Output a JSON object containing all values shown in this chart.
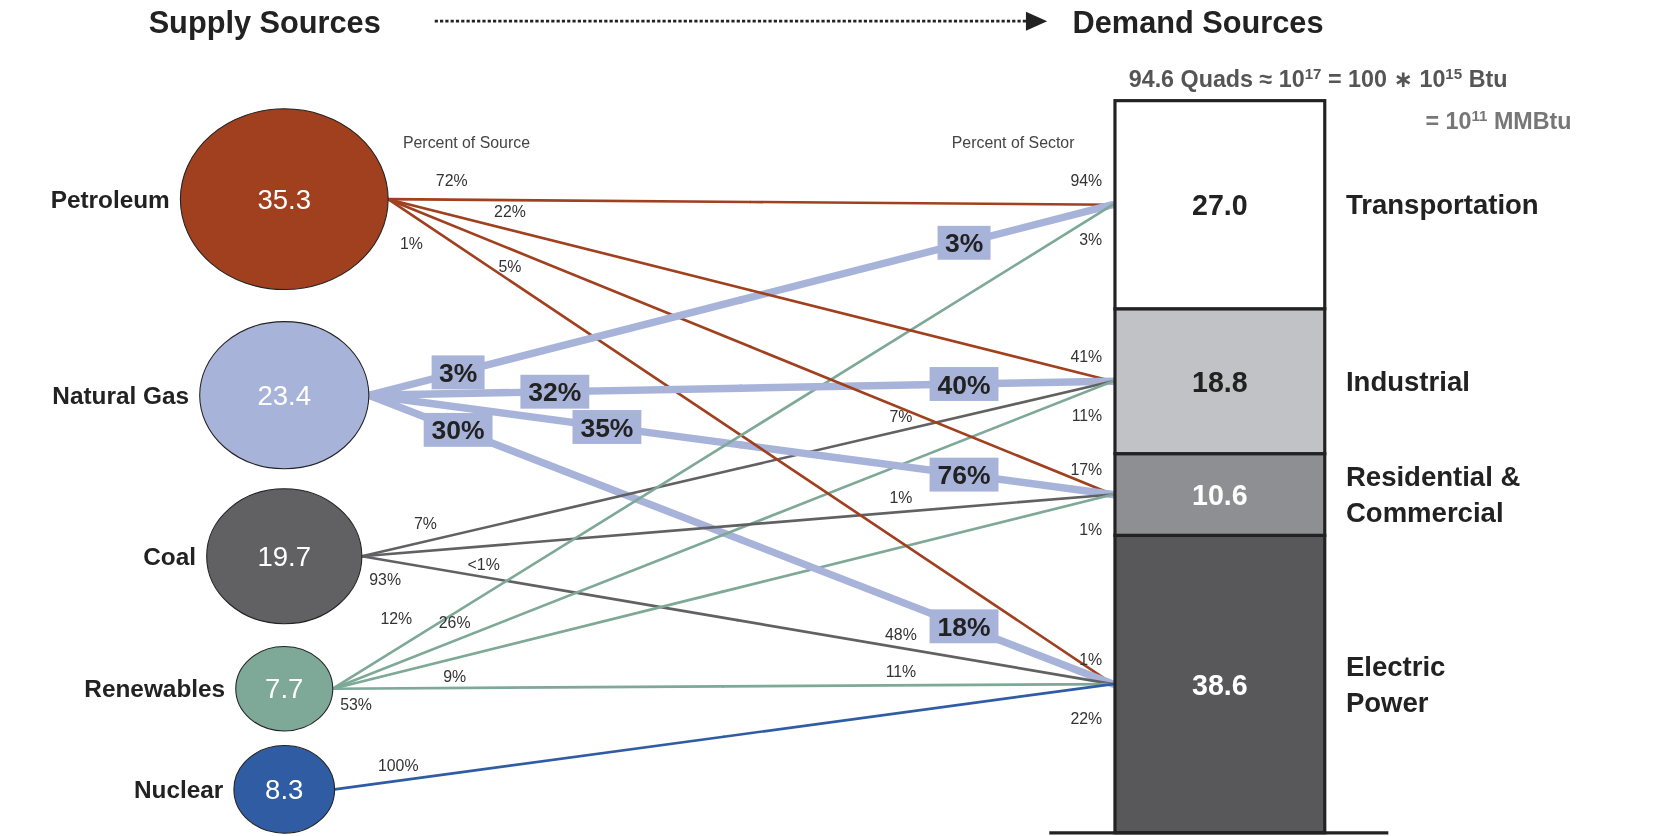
{
  "chart_data": [
    {
      "type": "other",
      "title": "Supply Sources",
      "categories": [
        "Petroleum",
        "Natural Gas",
        "Coal",
        "Renewables",
        "Nuclear"
      ],
      "values": [
        35.3,
        23.4,
        19.7,
        7.7,
        8.3
      ],
      "colors": [
        "#a0401f",
        "#a8b3da",
        "#616163",
        "#7ea897",
        "#2f5ca3"
      ],
      "data_labels": true
    },
    {
      "type": "bar",
      "stacked": true,
      "title": "Demand Sources",
      "annotations": [
        "94.6 Quads ≈ 10$^{17}$ = 100 ∗ 10$^{15}$ Btu",
        "= 10$^{11}$ MMBtu"
      ],
      "categories": [
        null
      ],
      "series": [
        {
          "name": "Electric Power",
          "color": "#58585b",
          "values": [
            38.6
          ],
          "value_labels": [
            "38.6"
          ]
        },
        {
          "name": "Residential & Commercial",
          "color": "#8e8f92",
          "values": [
            10.6
          ],
          "value_labels": [
            "10.6"
          ]
        },
        {
          "name": "Industrial",
          "color": "#c1c2c5",
          "values": [
            18.8
          ],
          "value_labels": [
            "18.8"
          ]
        },
        {
          "name": "Transportation",
          "color": "#ffffff",
          "values": [
            27.0
          ],
          "value_labels": [
            "27.0"
          ]
        }
      ]
    },
    {
      "type": "other",
      "annotations": [
        "Percent of Source"
      ],
      "categories": [
        null,
        null,
        null,
        null
      ],
      "series": [
        {
          "color": "#a0401f",
          "values": [
            null,
            null,
            null,
            null
          ],
          "value_labels": [
            "72%",
            "22%",
            "5%",
            "1%"
          ]
        },
        {
          "color": "#a8b3da",
          "values": [
            null,
            null,
            null,
            null
          ],
          "value_labels": [
            "3%",
            "32%",
            "35%",
            "30%"
          ]
        },
        {
          "color": "#616163",
          "values": [
            null,
            null,
            null,
            null
          ],
          "value_labels": [
            null,
            "7%",
            "<1%",
            "93%"
          ]
        },
        {
          "color": "#7ea897",
          "values": [
            null,
            null,
            null,
            null
          ],
          "value_labels": [
            "12%",
            "26%",
            "9%",
            "53%"
          ]
        },
        {
          "color": "#2f5ca3",
          "values": [
            null,
            null,
            null,
            null
          ],
          "value_labels": [
            null,
            null,
            null,
            "100%"
          ]
        }
      ]
    },
    {
      "type": "other",
      "annotations": [
        "Percent of Sector"
      ],
      "categories": [
        null,
        null,
        null,
        null
      ],
      "series": [
        {
          "color": "#a0401f",
          "values": [
            null,
            null,
            null,
            null
          ],
          "value_labels": [
            "94%",
            "41%",
            "17%",
            "1%"
          ]
        },
        {
          "color": "#a8b3da",
          "values": [
            null,
            null,
            null,
            null
          ],
          "value_labels": [
            "3%",
            "40%",
            "76%",
            "18%"
          ]
        },
        {
          "color": "#616163",
          "values": [
            null,
            null,
            null,
            null
          ],
          "value_labels": [
            null,
            "7%",
            "1%",
            "48%"
          ]
        },
        {
          "color": "#7ea897",
          "values": [
            null,
            null,
            null,
            null
          ],
          "value_labels": [
            "3%",
            "11%",
            "1%",
            "11%"
          ]
        },
        {
          "color": "#2f5ca3",
          "values": [
            null,
            null,
            null,
            null
          ],
          "value_labels": [
            null,
            null,
            null,
            "22%"
          ]
        }
      ]
    }
  ]
}
